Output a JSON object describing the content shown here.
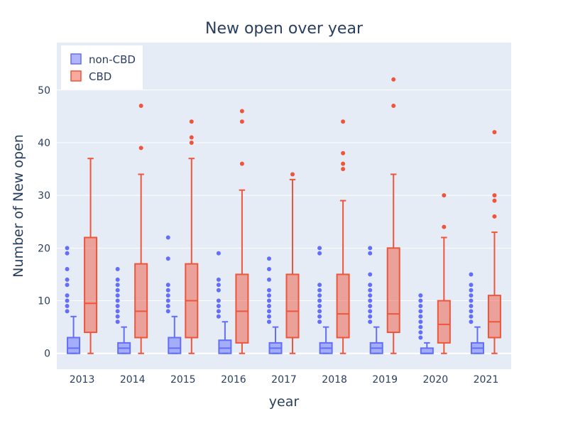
{
  "chart_data": {
    "type": "box",
    "title": "New open over year",
    "xlabel": "year",
    "ylabel": "Number of New open",
    "categories": [
      "2013",
      "2014",
      "2015",
      "2016",
      "2017",
      "2018",
      "2019",
      "2020",
      "2021"
    ],
    "ylim": [
      -3,
      59
    ],
    "yticks": [
      0,
      10,
      20,
      30,
      40,
      50
    ],
    "grid": true,
    "legend_position": "top-left",
    "series": [
      {
        "name": "non-CBD",
        "color": "#636efa",
        "fill": "rgba(99,110,250,0.5)",
        "boxes": [
          {
            "min": 0,
            "q1": 0,
            "median": 1,
            "q3": 3,
            "max": 7,
            "outliers": [
              8,
              9,
              10,
              11,
              13,
              14,
              16,
              19,
              20
            ]
          },
          {
            "min": 0,
            "q1": 0,
            "median": 1,
            "q3": 2,
            "max": 5,
            "outliers": [
              6,
              7,
              8,
              9,
              10,
              11,
              12,
              13,
              14,
              16
            ]
          },
          {
            "min": 0,
            "q1": 0,
            "median": 1,
            "q3": 3,
            "max": 7,
            "outliers": [
              8,
              9,
              10,
              11,
              12,
              13,
              18,
              22
            ]
          },
          {
            "min": 0,
            "q1": 0,
            "median": 1,
            "q3": 2.5,
            "max": 6,
            "outliers": [
              7,
              8,
              9,
              10,
              12,
              13,
              14,
              19
            ]
          },
          {
            "min": 0,
            "q1": 0,
            "median": 1,
            "q3": 2,
            "max": 5,
            "outliers": [
              6,
              7,
              8,
              9,
              10,
              11,
              12,
              14,
              16,
              18
            ]
          },
          {
            "min": 0,
            "q1": 0,
            "median": 1,
            "q3": 2,
            "max": 5,
            "outliers": [
              6,
              7,
              8,
              9,
              10,
              11,
              12,
              13,
              19,
              20
            ]
          },
          {
            "min": 0,
            "q1": 0,
            "median": 1,
            "q3": 2,
            "max": 5,
            "outliers": [
              6,
              7,
              8,
              9,
              10,
              11,
              12,
              13,
              15,
              19,
              20
            ]
          },
          {
            "min": 0,
            "q1": 0,
            "median": 0,
            "q3": 1,
            "max": 2,
            "outliers": [
              3,
              4,
              5,
              6,
              7,
              8,
              9,
              10,
              11
            ]
          },
          {
            "min": 0,
            "q1": 0,
            "median": 1,
            "q3": 2,
            "max": 5,
            "outliers": [
              6,
              7,
              8,
              9,
              10,
              11,
              12,
              13,
              15
            ]
          }
        ]
      },
      {
        "name": "CBD",
        "color": "#ef553b",
        "fill": "rgba(239,85,59,0.5)",
        "boxes": [
          {
            "min": 0,
            "q1": 4,
            "median": 9.5,
            "q3": 22,
            "max": 37,
            "outliers": []
          },
          {
            "min": 0,
            "q1": 3,
            "median": 8,
            "q3": 17,
            "max": 34,
            "outliers": [
              39,
              47
            ]
          },
          {
            "min": 0,
            "q1": 3,
            "median": 10,
            "q3": 17,
            "max": 37,
            "outliers": [
              40,
              41,
              44
            ]
          },
          {
            "min": 0,
            "q1": 2,
            "median": 8,
            "q3": 15,
            "max": 31,
            "outliers": [
              36,
              44,
              46
            ]
          },
          {
            "min": 0,
            "q1": 3,
            "median": 8,
            "q3": 15,
            "max": 33,
            "outliers": [
              34
            ]
          },
          {
            "min": 0,
            "q1": 3,
            "median": 7.5,
            "q3": 15,
            "max": 29,
            "outliers": [
              35,
              36,
              38,
              44
            ]
          },
          {
            "min": 0,
            "q1": 4,
            "median": 7.5,
            "q3": 20,
            "max": 34,
            "outliers": [
              47,
              52
            ]
          },
          {
            "min": 0,
            "q1": 2,
            "median": 5.5,
            "q3": 10,
            "max": 22,
            "outliers": [
              24,
              30
            ]
          },
          {
            "min": 0,
            "q1": 3,
            "median": 6,
            "q3": 11,
            "max": 23,
            "outliers": [
              26,
              29,
              30,
              42
            ]
          }
        ]
      }
    ]
  }
}
